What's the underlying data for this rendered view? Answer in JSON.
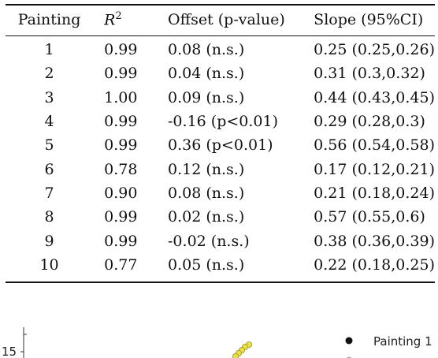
{
  "table": {
    "headers": {
      "painting": "Painting",
      "r2_base": "R",
      "r2_exp": "2",
      "offset": "Offset (p-value)",
      "slope": "Slope (95%CI)"
    },
    "rows": [
      {
        "painting": "1",
        "r2": "0.99",
        "offset": "0.08 (n.s.)",
        "slope": "0.25 (0.25,0.26)"
      },
      {
        "painting": "2",
        "r2": "0.99",
        "offset": "0.04 (n.s.)",
        "slope": "0.31 (0.3,0.32)"
      },
      {
        "painting": "3",
        "r2": "1.00",
        "offset": "0.09 (n.s.)",
        "slope": "0.44 (0.43,0.45)"
      },
      {
        "painting": "4",
        "r2": "0.99",
        "offset": "-0.16 (p<0.01)",
        "slope": "0.29 (0.28,0.3)"
      },
      {
        "painting": "5",
        "r2": "0.99",
        "offset": "0.36 (p<0.01)",
        "slope": "0.56 (0.54,0.58)"
      },
      {
        "painting": "6",
        "r2": "0.78",
        "offset": "0.12 (n.s.)",
        "slope": "0.17 (0.12,0.21)"
      },
      {
        "painting": "7",
        "r2": "0.90",
        "offset": "0.08 (n.s.)",
        "slope": "0.21 (0.18,0.24)"
      },
      {
        "painting": "8",
        "r2": "0.99",
        "offset": "0.02 (n.s.)",
        "slope": "0.57 (0.55,0.6)"
      },
      {
        "painting": "9",
        "r2": "0.99",
        "offset": "-0.02 (n.s.)",
        "slope": "0.38 (0.36,0.39)"
      },
      {
        "painting": "10",
        "r2": "0.77",
        "offset": "0.05 (n.s.)",
        "slope": "0.22 (0.18,0.25)"
      }
    ]
  },
  "figure": {
    "y_tick_label": "15",
    "legend": [
      {
        "label": "Painting 1",
        "color": "#111111"
      }
    ],
    "point_color": "#e8e04a"
  }
}
